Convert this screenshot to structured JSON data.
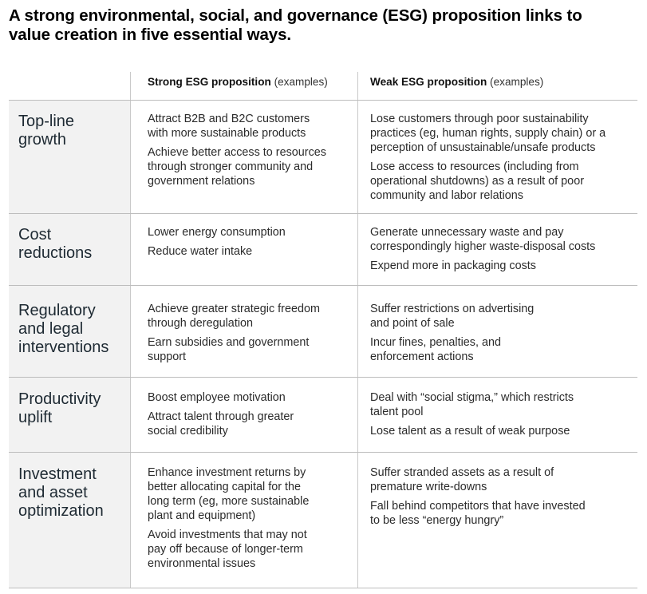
{
  "title": {
    "line1": "A strong environmental, social, and governance (ESG) proposition links to",
    "line2": "value creation in five essential ways."
  },
  "columns": {
    "strong": {
      "label": "Strong ESG proposition",
      "suffix": " (examples)"
    },
    "weak": {
      "label": "Weak ESG proposition",
      "suffix": " (examples)"
    }
  },
  "rows": [
    {
      "label": [
        "Top-line",
        "growth"
      ],
      "strong": [
        [
          "Attract B2B and B2C customers",
          "with more sustainable products"
        ],
        [
          "Achieve better access to resources",
          "through stronger community and",
          "government relations"
        ]
      ],
      "weak": [
        [
          "Lose customers through poor sustainability",
          "practices (eg, human rights, supply chain) or a",
          "perception of unsustainable/unsafe products"
        ],
        [
          "Lose access to resources (including from",
          "operational shutdowns) as a result of poor",
          "community and labor relations"
        ]
      ]
    },
    {
      "label": [
        "Cost",
        "reductions"
      ],
      "strong": [
        [
          "Lower energy consumption"
        ],
        [
          "Reduce water intake"
        ]
      ],
      "weak": [
        [
          "Generate unnecessary waste and pay",
          "correspondingly higher waste-disposal costs"
        ],
        [
          "Expend more in packaging costs"
        ]
      ]
    },
    {
      "label": [
        "Regulatory",
        "and legal",
        "interventions"
      ],
      "strong": [
        [
          "Achieve greater strategic freedom",
          "through deregulation"
        ],
        [
          "Earn subsidies and government",
          "support"
        ]
      ],
      "weak": [
        [
          "Suffer restrictions on advertising",
          "and point of sale"
        ],
        [
          "Incur fines, penalties, and",
          "enforcement actions"
        ]
      ]
    },
    {
      "label": [
        "Productivity",
        "uplift"
      ],
      "strong": [
        [
          "Boost employee motivation"
        ],
        [
          "Attract talent through greater",
          "social credibility"
        ]
      ],
      "weak": [
        [
          "Deal with “social stigma,” which restricts",
          "talent pool"
        ],
        [
          "Lose talent as a result of weak purpose"
        ]
      ]
    },
    {
      "label": [
        "Investment",
        "and asset",
        "optimization"
      ],
      "strong": [
        [
          "Enhance investment returns by",
          "better allocating capital for the",
          "long term (eg, more sustainable",
          "plant and equipment)"
        ],
        [
          "Avoid investments that may not",
          "pay off because of longer-term",
          "environmental issues"
        ]
      ],
      "weak": [
        [
          "Suffer stranded assets as a result of",
          "premature write-downs"
        ],
        [
          "Fall behind competitors that have invested",
          "to be less “energy hungry”"
        ]
      ]
    }
  ]
}
